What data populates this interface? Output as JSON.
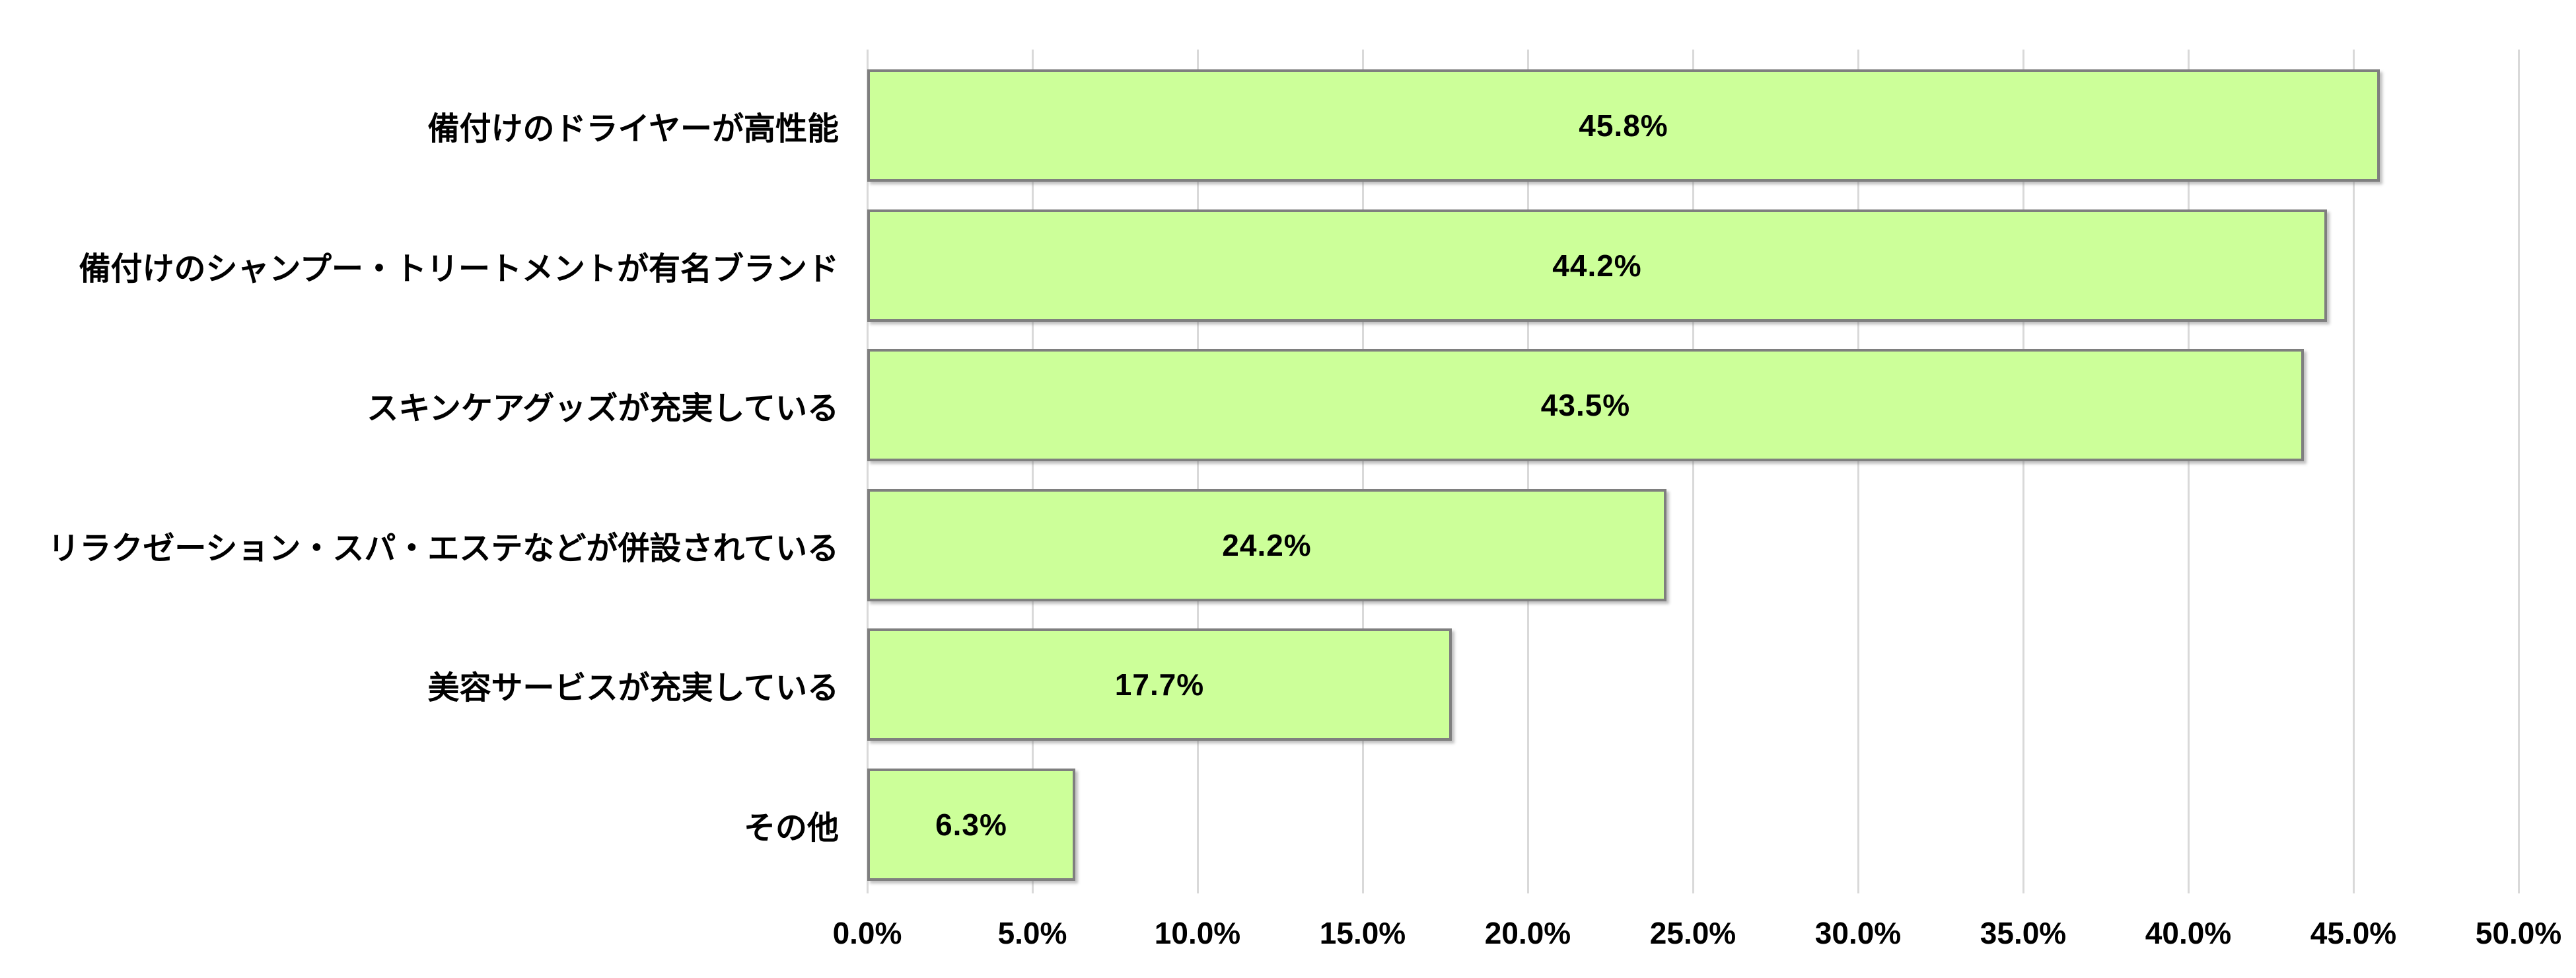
{
  "chart_data": {
    "type": "bar",
    "orientation": "horizontal",
    "title": "",
    "xlabel": "",
    "ylabel": "",
    "categories": [
      "備付けのドライヤーが高性能",
      "備付けのシャンプー・トリートメントが有名ブランド",
      "スキンケアグッズが充実している",
      "リラクゼーション・スパ・エステなどが併設されている",
      "美容サービスが充実している",
      "その他"
    ],
    "values": [
      45.8,
      44.2,
      43.5,
      24.2,
      17.7,
      6.3
    ],
    "data_labels": [
      "45.8%",
      "44.2%",
      "43.5%",
      "24.2%",
      "17.7%",
      "6.3%"
    ],
    "xlim": [
      0,
      50
    ],
    "x_ticks": [
      {
        "value": 0,
        "label": "0.0%"
      },
      {
        "value": 5,
        "label": "5.0%"
      },
      {
        "value": 10,
        "label": "10.0%"
      },
      {
        "value": 15,
        "label": "15.0%"
      },
      {
        "value": 20,
        "label": "20.0%"
      },
      {
        "value": 25,
        "label": "25.0%"
      },
      {
        "value": 30,
        "label": "30.0%"
      },
      {
        "value": 35,
        "label": "35.0%"
      },
      {
        "value": 40,
        "label": "40.0%"
      },
      {
        "value": 45,
        "label": "45.0%"
      },
      {
        "value": 50,
        "label": "50.0%"
      }
    ],
    "grid": "vertical-only",
    "legend": "none",
    "colors": {
      "bar_fill": "#CCFF99",
      "bar_border": "#7F7F7F",
      "gridline": "#D9D9D9",
      "text": "#000000",
      "background": "#FFFFFF"
    }
  }
}
